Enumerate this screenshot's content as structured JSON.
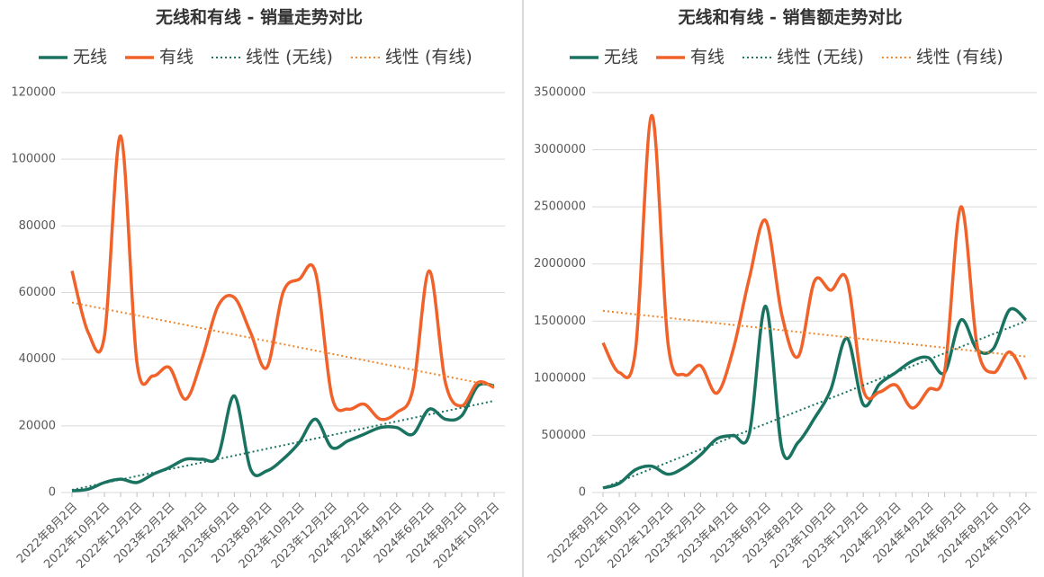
{
  "chart_data": [
    {
      "type": "line",
      "title": "无线和有线 - 销量走势对比",
      "categories": [
        "2022年8月2日",
        null,
        "2022年10月2日",
        null,
        "2022年12月2日",
        null,
        "2023年2月2日",
        null,
        "2023年4月2日",
        null,
        "2023年6月2日",
        null,
        "2023年8月2日",
        null,
        "2023年10月2日",
        null,
        "2023年12月2日",
        null,
        "2024年2月2日",
        null,
        "2024年4月2日",
        null,
        "2024年6月2日",
        null,
        "2024年8月2日",
        null,
        "2024年10月2日"
      ],
      "ylim": [
        0,
        120000
      ],
      "yticks": [
        0,
        20000,
        40000,
        60000,
        80000,
        100000,
        120000
      ],
      "grid": true,
      "series": [
        {
          "name": "无线",
          "color": "#1a7360",
          "style": "solid",
          "values": [
            500,
            1000,
            3000,
            4000,
            3000,
            5500,
            7500,
            10000,
            10000,
            11000,
            29000,
            7000,
            6500,
            10000,
            15000,
            22000,
            13500,
            15500,
            17500,
            19500,
            19500,
            17500,
            25000,
            22000,
            23000,
            32000,
            32000
          ]
        },
        {
          "name": "有线",
          "color": "#f0622a",
          "style": "solid",
          "values": [
            66500,
            48000,
            47000,
            107000,
            39000,
            35000,
            37500,
            28000,
            40000,
            56000,
            58500,
            48000,
            37500,
            60000,
            64000,
            66000,
            29000,
            25000,
            26500,
            22000,
            24000,
            31000,
            66500,
            33000,
            26000,
            33000,
            31500
          ]
        },
        {
          "name": "线性 (无线)",
          "color": "#1a7360",
          "style": "dotted",
          "values": [
            800,
            1827,
            2854,
            3881,
            4908,
            5935,
            6962,
            7988,
            9015,
            10042,
            11069,
            12096,
            13123,
            14150,
            15177,
            16204,
            17231,
            18258,
            19285,
            20312,
            21338,
            22365,
            23392,
            24419,
            25446,
            26473,
            27500
          ]
        },
        {
          "name": "线性 (有线)",
          "color": "#f0862a",
          "style": "dotted",
          "values": [
            57000,
            56038,
            55077,
            54115,
            53154,
            52192,
            51231,
            50269,
            49308,
            48346,
            47385,
            46423,
            45462,
            44500,
            43538,
            42577,
            41615,
            40654,
            39692,
            38731,
            37769,
            36808,
            35846,
            34885,
            33923,
            32962,
            32000
          ]
        }
      ]
    },
    {
      "type": "line",
      "title": "无线和有线 - 销售额走势对比",
      "categories": [
        "2022年8月2日",
        null,
        "2022年10月2日",
        null,
        "2022年12月2日",
        null,
        "2023年2月2日",
        null,
        "2023年4月2日",
        null,
        "2023年6月2日",
        null,
        "2023年8月2日",
        null,
        "2023年10月2日",
        null,
        "2023年12月2日",
        null,
        "2024年2月2日",
        null,
        "2024年4月2日",
        null,
        "2024年6月2日",
        null,
        "2024年8月2日",
        null,
        "2024年10月2日"
      ],
      "ylim": [
        0,
        3500000
      ],
      "yticks": [
        0,
        500000,
        1000000,
        1500000,
        2000000,
        2500000,
        3000000,
        3500000
      ],
      "grid": true,
      "series": [
        {
          "name": "无线",
          "color": "#1a7360",
          "style": "solid",
          "values": [
            40000,
            80000,
            200000,
            230000,
            160000,
            220000,
            330000,
            470000,
            500000,
            520000,
            1630000,
            380000,
            440000,
            650000,
            900000,
            1350000,
            770000,
            950000,
            1050000,
            1150000,
            1180000,
            1050000,
            1510000,
            1250000,
            1260000,
            1600000,
            1510000
          ]
        },
        {
          "name": "有线",
          "color": "#f0622a",
          "style": "solid",
          "values": [
            1310000,
            1050000,
            1250000,
            3300000,
            1300000,
            1030000,
            1110000,
            870000,
            1250000,
            1880000,
            2380000,
            1550000,
            1190000,
            1850000,
            1770000,
            1860000,
            900000,
            880000,
            940000,
            740000,
            900000,
            1060000,
            2500000,
            1280000,
            1050000,
            1230000,
            990000
          ]
        },
        {
          "name": "线性 (无线)",
          "color": "#1a7360",
          "style": "dotted",
          "values": [
            40000,
            96154,
            152308,
            208462,
            264615,
            320769,
            376923,
            433077,
            489231,
            545385,
            601538,
            657692,
            713846,
            770000,
            826154,
            882308,
            938462,
            994615,
            1050769,
            1106923,
            1163077,
            1219231,
            1275385,
            1331538,
            1387692,
            1443846,
            1500000
          ]
        },
        {
          "name": "线性 (有线)",
          "color": "#f0862a",
          "style": "dotted",
          "values": [
            1590000,
            1574615,
            1559231,
            1543846,
            1528462,
            1513077,
            1497692,
            1482308,
            1466923,
            1451538,
            1436154,
            1420769,
            1405385,
            1390000,
            1374615,
            1359231,
            1343846,
            1328462,
            1313077,
            1297692,
            1282308,
            1266923,
            1251538,
            1236154,
            1220769,
            1205385,
            1190000
          ]
        }
      ]
    }
  ]
}
